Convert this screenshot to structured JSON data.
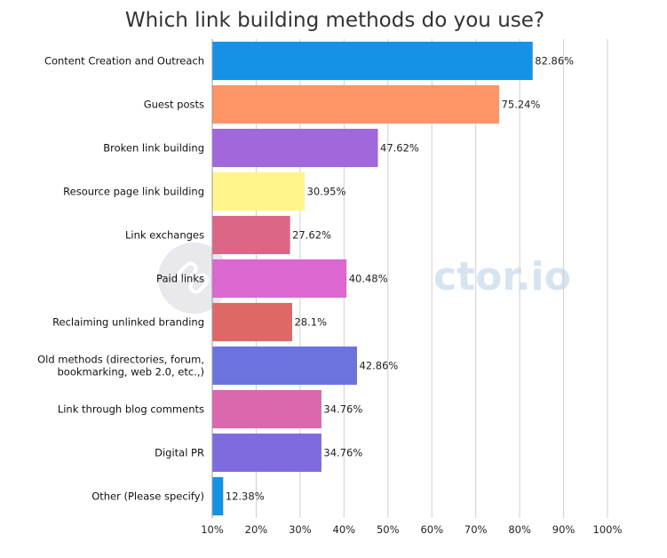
{
  "chart_data": {
    "type": "bar",
    "orientation": "horizontal",
    "title": "Which link building methods do you use?",
    "xlabel": "",
    "ylabel": "",
    "xlim": [
      10,
      100
    ],
    "x_ticks": [
      "10%",
      "20%",
      "30%",
      "40%",
      "50%",
      "60%",
      "70%",
      "80%",
      "90%",
      "100%"
    ],
    "grid": true,
    "categories": [
      "Content Creation and Outreach",
      "Guest posts",
      "Broken link building",
      "Resource page link building",
      "Link exchanges",
      "Paid links",
      "Reclaiming unlinked branding",
      "Old methods (directories, forum, bookmarking, web 2.0, etc.,)",
      "Link through blog comments",
      "Digital PR",
      "Other (Please specify)"
    ],
    "values": [
      82.86,
      75.24,
      47.62,
      30.95,
      27.62,
      40.48,
      28.1,
      42.86,
      34.76,
      34.76,
      12.38
    ],
    "value_labels": [
      "82.86%",
      "75.24%",
      "47.62%",
      "30.95%",
      "27.62%",
      "40.48%",
      "28.1%",
      "42.86%",
      "34.76%",
      "34.76%",
      "12.38%"
    ],
    "colors": [
      "#1592e6",
      "#ff9466",
      "#a068da",
      "#fff58a",
      "#db6685",
      "#da68d0",
      "#de6868",
      "#6b74de",
      "#db68ad",
      "#7f6bde",
      "#1592e6"
    ]
  },
  "watermark": {
    "text": "Bctor.io",
    "icon": "link-chain-icon"
  }
}
